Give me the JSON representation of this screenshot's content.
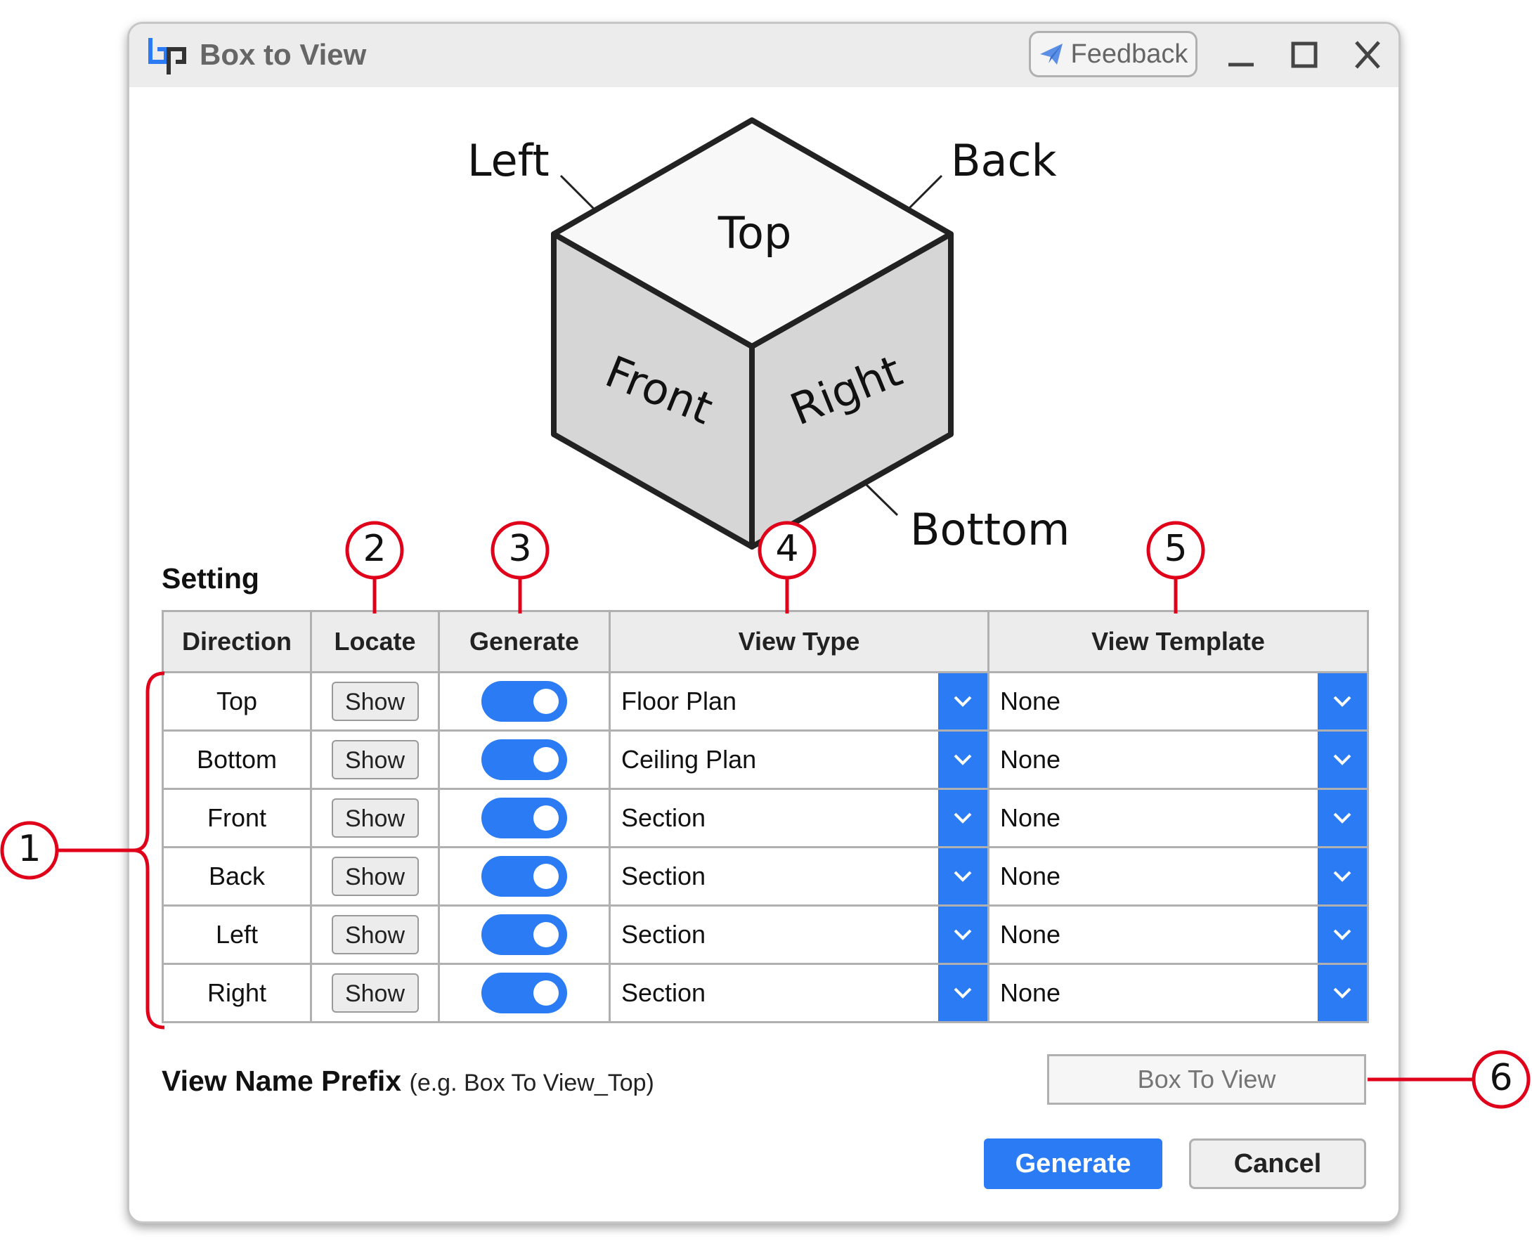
{
  "window": {
    "title": "Box to View",
    "feedback_label": "Feedback",
    "colors": {
      "accent": "#2a7bf4",
      "callout": "#e0001a"
    }
  },
  "diagram": {
    "faces": {
      "top": "Top",
      "front": "Front",
      "right": "Right"
    },
    "labels": {
      "left": "Left",
      "back": "Back",
      "bottom": "Bottom"
    }
  },
  "setting": {
    "title": "Setting",
    "columns": [
      "Direction",
      "Locate",
      "Generate",
      "View Type",
      "View Template"
    ],
    "rows": [
      {
        "direction": "Top",
        "locate": "Show",
        "generate": true,
        "view_type": "Floor Plan",
        "view_template": "None"
      },
      {
        "direction": "Bottom",
        "locate": "Show",
        "generate": true,
        "view_type": "Ceiling Plan",
        "view_template": "None"
      },
      {
        "direction": "Front",
        "locate": "Show",
        "generate": true,
        "view_type": "Section",
        "view_template": "None"
      },
      {
        "direction": "Back",
        "locate": "Show",
        "generate": true,
        "view_type": "Section",
        "view_template": "None"
      },
      {
        "direction": "Left",
        "locate": "Show",
        "generate": true,
        "view_type": "Section",
        "view_template": "None"
      },
      {
        "direction": "Right",
        "locate": "Show",
        "generate": true,
        "view_type": "Section",
        "view_template": "None"
      }
    ]
  },
  "prefix": {
    "label": "View Name Prefix",
    "hint": "(e.g. Box To View_Top)",
    "placeholder": "Box To View"
  },
  "actions": {
    "generate": "Generate",
    "cancel": "Cancel"
  },
  "callouts": [
    "1",
    "2",
    "3",
    "4",
    "5",
    "6"
  ]
}
